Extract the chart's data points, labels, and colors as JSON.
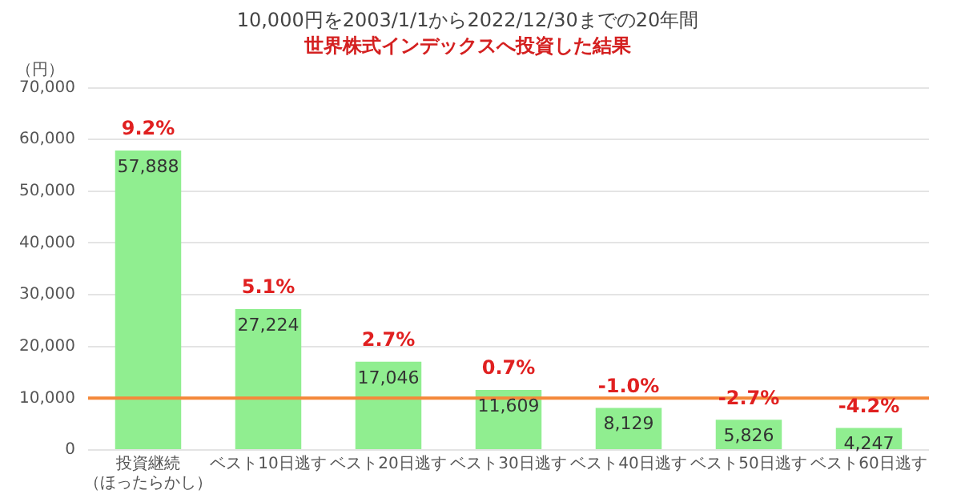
{
  "chart_data": {
    "type": "bar",
    "title": "10,000円を2003/1/1から2022/12/30までの20年間",
    "subtitle": "世界株式インデックスへ投資した結果",
    "ylabel": "（円）",
    "categories": [
      "投資継続（ほったらかし）",
      "ベスト10日逃す",
      "ベスト20日逃す",
      "ベスト30日逃す",
      "ベスト40日逃す",
      "ベスト50日逃す",
      "ベスト60日逃す"
    ],
    "values": [
      57888,
      27224,
      17046,
      11609,
      8129,
      5826,
      4247
    ],
    "color": "#90ee90",
    "value_labels": [
      "57,888",
      "27,224",
      "17,046",
      "11,609",
      "8,129",
      "5,826",
      "4,247"
    ],
    "ylim": [
      0,
      70000
    ],
    "yticks": [
      {
        "value": 0,
        "label": "0"
      },
      {
        "value": 10000,
        "label": "10,000"
      },
      {
        "value": 20000,
        "label": "20,000"
      },
      {
        "value": 30000,
        "label": "30,000"
      },
      {
        "value": 40000,
        "label": "40,000"
      },
      {
        "value": 50000,
        "label": "50,000"
      },
      {
        "value": 60000,
        "label": "60,000"
      },
      {
        "value": 70000,
        "label": "70,000"
      }
    ],
    "grid": "y",
    "ref_lines": [
      {
        "axis": "y",
        "value": 10000,
        "color": "#f4893a"
      }
    ],
    "annotations": [
      {
        "text": "9.2%",
        "x": "投資継続（ほったらかし）",
        "y": 57888
      },
      {
        "text": "5.1%",
        "x": "ベスト10日逃す",
        "y": 27224
      },
      {
        "text": "2.7%",
        "x": "ベスト20日逃す",
        "y": 17046
      },
      {
        "text": "0.7%",
        "x": "ベスト30日逃す",
        "y": 11609
      },
      {
        "text": "-1.0%",
        "x": "ベスト40日逃す",
        "y": 8129
      },
      {
        "text": "-2.7%",
        "x": "ベスト50日逃す",
        "y": 5826
      },
      {
        "text": "-4.2%",
        "x": "ベスト60日逃す",
        "y": 4247
      }
    ]
  }
}
